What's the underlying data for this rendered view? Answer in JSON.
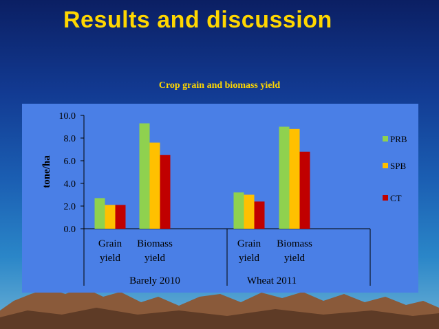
{
  "slide": {
    "title": "Results and discussion"
  },
  "colors": {
    "plot_bg": "#4a7fe6",
    "title": "#ffd700",
    "PRB": "#8fd14f",
    "SPB": "#ffc000",
    "CT": "#c00000"
  },
  "chart_data": {
    "type": "bar",
    "title": "Crop grain and biomass yield",
    "ylabel": "tone/ha",
    "ylim": [
      0,
      10
    ],
    "yticks": [
      "0.0",
      "2.0",
      "4.0",
      "6.0",
      "8.0",
      "10.0"
    ],
    "groups": [
      {
        "name": "Barely 2010",
        "categories": [
          [
            "Grain",
            "yield"
          ],
          [
            "Biomass",
            "yield"
          ]
        ]
      },
      {
        "name": "Wheat 2011",
        "categories": [
          [
            "Grain",
            "yield"
          ],
          [
            "Biomass",
            "yield"
          ]
        ]
      }
    ],
    "series": [
      {
        "name": "PRB",
        "values": [
          2.7,
          9.3,
          3.2,
          9.0
        ]
      },
      {
        "name": "SPB",
        "values": [
          2.1,
          7.6,
          3.0,
          8.8
        ]
      },
      {
        "name": "CT",
        "values": [
          2.1,
          6.5,
          2.4,
          6.8
        ]
      }
    ],
    "legend": "right",
    "grid": false
  }
}
